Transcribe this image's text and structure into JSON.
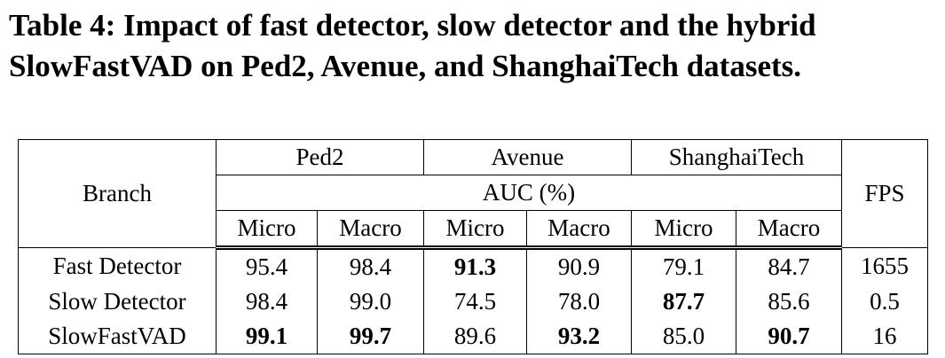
{
  "title_lines": [
    "Table 4: Impact of fast detector, slow detector and the hybrid",
    "SlowFastVAD on Ped2, Avenue, and ShanghaiTech datasets."
  ],
  "table": {
    "branch_header": "Branch",
    "datasets": [
      "Ped2",
      "Avenue",
      "ShanghaiTech"
    ],
    "metric": "AUC (%)",
    "subheaders": [
      "Micro",
      "Macro"
    ],
    "fps_header": "FPS",
    "rows": [
      [
        "Fast Detector",
        "95.4",
        "98.4",
        "91.3",
        "90.9",
        "79.1",
        "84.7",
        "1655"
      ],
      [
        "Slow Detector",
        "98.4",
        "99.0",
        "74.5",
        "78.0",
        "87.7",
        "85.6",
        "0.5"
      ],
      [
        "SlowFastVAD",
        "99.1",
        "99.7",
        "89.6",
        "93.2",
        "85.0",
        "90.7",
        "16"
      ]
    ],
    "bold": [
      [
        0,
        3
      ],
      [
        1,
        5
      ],
      [
        2,
        1
      ],
      [
        2,
        2
      ],
      [
        2,
        4
      ],
      [
        2,
        6
      ]
    ]
  }
}
